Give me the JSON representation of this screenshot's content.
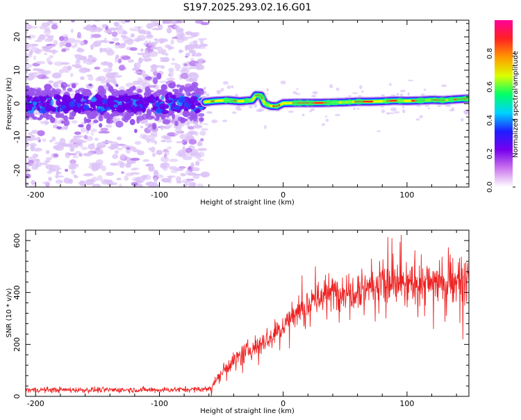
{
  "title": "S197.2025.293.02.16.G01",
  "chart_data": [
    {
      "type": "heatmap",
      "title": "S197.2025.293.02.16.G01",
      "xlabel": "Height of straight line (km)",
      "ylabel": "Frequency (Hz)",
      "xlim": [
        -208,
        150
      ],
      "ylim": [
        -25,
        25
      ],
      "xticks": [
        -200,
        -100,
        0,
        100
      ],
      "xtick_labels": [
        "-200",
        "-100",
        "0",
        "100"
      ],
      "yticks": [
        -20,
        -10,
        0,
        10,
        20
      ],
      "ytick_labels": [
        "-20",
        "-10",
        "0",
        "10",
        "20"
      ],
      "noise_region_x": [
        -208,
        -63
      ],
      "noise_band_halfwidth_hz": 3,
      "ridge": {
        "description": "dominant frequency trace",
        "x": [
          -63,
          -55,
          -45,
          -35,
          -25,
          -22,
          -18,
          -15,
          -10,
          -5,
          0,
          10,
          20,
          30,
          40,
          50,
          60,
          70,
          80,
          90,
          100,
          110,
          120,
          130,
          140,
          150
        ],
        "y": [
          0.5,
          0.8,
          1.0,
          0.7,
          1.0,
          2.5,
          2.4,
          0.0,
          -0.7,
          -0.8,
          0.1,
          0.2,
          0.2,
          0.2,
          0.3,
          0.4,
          0.6,
          0.6,
          0.7,
          0.9,
          0.8,
          0.9,
          1.1,
          1.0,
          1.3,
          1.5
        ]
      },
      "colorbar": {
        "label": "Normalized spectral amplitude",
        "range": [
          0.0,
          1.0
        ],
        "ticks": [
          0.0,
          0.2,
          0.4,
          0.6,
          0.8
        ],
        "tick_labels": [
          "0.0",
          "0.2",
          "0.4",
          "0.6",
          "0.8"
        ],
        "colors": [
          "#ffffff",
          "#cc77ee",
          "#7700ee",
          "#1e1eff",
          "#00d2ff",
          "#00ff66",
          "#ddff00",
          "#ff9900",
          "#ff2222",
          "#ff0099"
        ]
      }
    },
    {
      "type": "line",
      "xlabel": "Height of straight line (km)",
      "ylabel": "SNR (10 * v/v)",
      "xlim": [
        -208,
        150
      ],
      "ylim": [
        0,
        640
      ],
      "xticks": [
        -200,
        -100,
        0,
        100
      ],
      "xtick_labels": [
        "-200",
        "-100",
        "0",
        "100"
      ],
      "yticks": [
        0,
        200,
        400,
        600
      ],
      "ytick_labels": [
        "0",
        "200",
        "400",
        "600"
      ],
      "series": [
        {
          "name": "SNR",
          "color": "#ee2222",
          "trend_x": [
            -208,
            -150,
            -100,
            -60,
            -55,
            -50,
            -40,
            -30,
            -20,
            -10,
            0,
            10,
            20,
            30,
            40,
            50,
            60,
            70,
            80,
            100,
            120,
            150
          ],
          "trend_y": [
            25,
            25,
            25,
            28,
            60,
            90,
            140,
            170,
            200,
            230,
            270,
            320,
            360,
            385,
            400,
            410,
            420,
            425,
            430,
            430,
            440,
            445
          ]
        }
      ]
    }
  ]
}
